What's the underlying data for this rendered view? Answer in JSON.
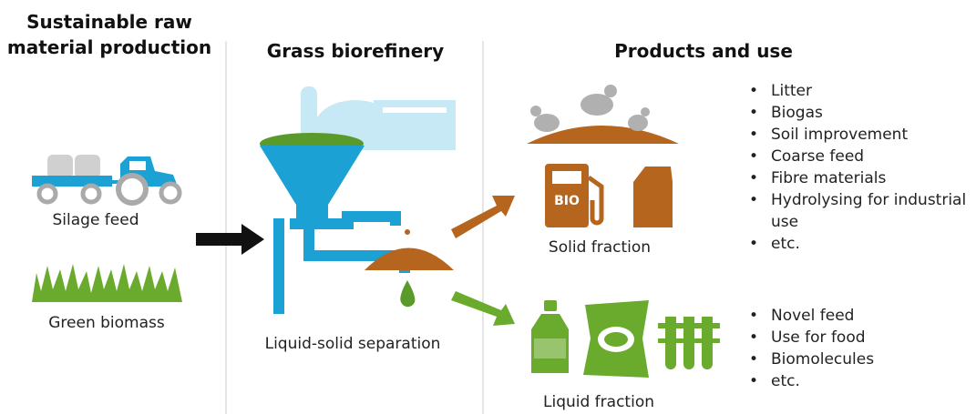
{
  "columns": [
    {
      "title_lines": [
        "Sustainable raw",
        "material production"
      ]
    },
    {
      "title_lines": [
        "Grass biorefinery"
      ]
    },
    {
      "title_lines": [
        "Products and use"
      ]
    }
  ],
  "inputs": [
    {
      "label": "Silage feed"
    },
    {
      "label": "Green biomass"
    }
  ],
  "process": {
    "label": "Liquid-solid separation"
  },
  "outputs": [
    {
      "label": "Solid fraction",
      "icon_text": "BIO",
      "uses": [
        "Litter",
        "Biogas",
        "Soil improvement",
        "Coarse feed",
        "Fibre materials",
        "Hydrolysing for industrial use",
        "etc."
      ]
    },
    {
      "label": "Liquid fraction",
      "uses": [
        "Novel feed",
        "Use for food",
        "Biomolecules",
        "etc."
      ]
    }
  ]
}
